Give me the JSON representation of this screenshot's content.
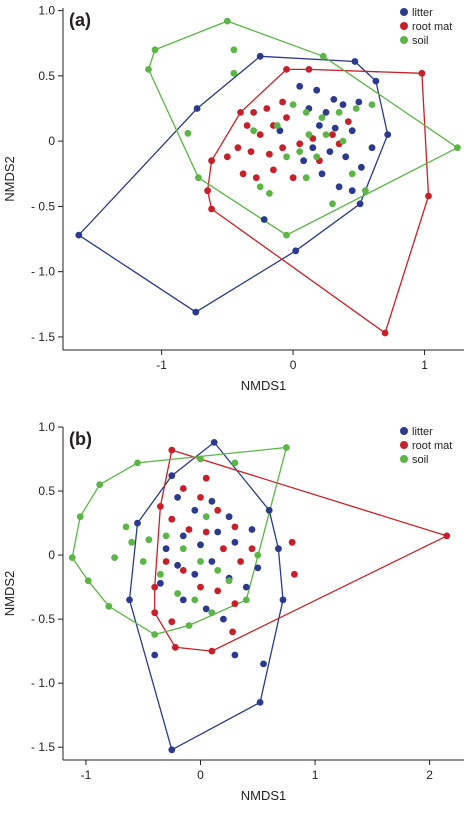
{
  "series_names": [
    "litter",
    "root mat",
    "soil"
  ],
  "colors": {
    "litter": "#2b3a8c",
    "root mat": "#c8202a",
    "soil": "#5cb646",
    "axis": "#231f20"
  },
  "chart_data": [
    {
      "type": "scatter",
      "panel_label": "(a)",
      "xlabel": "NMDS1",
      "ylabel": "NMDS2",
      "xlim": [
        -1.75,
        1.3
      ],
      "ylim": [
        -1.6,
        1.02
      ],
      "xticks": [
        -1,
        0,
        1
      ],
      "xtick_labels": [
        "-1",
        "0",
        "1"
      ],
      "yticks": [
        1.0,
        0.5,
        0,
        -0.5,
        -1.0,
        -1.5
      ],
      "ytick_labels": [
        "1.0",
        "0.5",
        "0",
        "- 0.5",
        "- 1.0",
        "- 1.5"
      ],
      "legend_position": "top-right",
      "series": [
        {
          "name": "litter",
          "points": [
            [
              -1.63,
              -0.72
            ],
            [
              -0.74,
              -1.31
            ],
            [
              -0.73,
              0.25
            ],
            [
              -0.25,
              0.65
            ],
            [
              0.47,
              0.61
            ],
            [
              0.63,
              0.46
            ],
            [
              0.72,
              0.05
            ],
            [
              0.51,
              -0.48
            ],
            [
              0.02,
              -0.84
            ],
            [
              -0.22,
              -0.6
            ],
            [
              0.05,
              0.42
            ],
            [
              0.18,
              0.39
            ],
            [
              0.31,
              0.32
            ],
            [
              0.12,
              0.25
            ],
            [
              0.25,
              0.22
            ],
            [
              0.38,
              0.28
            ],
            [
              0.5,
              0.3
            ],
            [
              0.2,
              0.12
            ],
            [
              0.32,
              0.1
            ],
            [
              0.45,
              0.08
            ],
            [
              0.15,
              -0.05
            ],
            [
              0.28,
              -0.08
            ],
            [
              0.4,
              -0.12
            ],
            [
              0.52,
              -0.2
            ],
            [
              0.08,
              -0.15
            ],
            [
              0.22,
              -0.25
            ],
            [
              0.35,
              -0.35
            ],
            [
              0.45,
              -0.38
            ],
            [
              -0.1,
              0.08
            ],
            [
              0.6,
              -0.05
            ]
          ]
        },
        {
          "name": "root mat",
          "points": [
            [
              0.7,
              -1.47
            ],
            [
              1.03,
              -0.42
            ],
            [
              0.98,
              0.52
            ],
            [
              -0.05,
              0.55
            ],
            [
              -0.62,
              -0.52
            ],
            [
              -0.65,
              -0.38
            ],
            [
              -0.5,
              -0.12
            ],
            [
              -0.62,
              -0.15
            ],
            [
              -0.4,
              0.22
            ],
            [
              -0.3,
              0.22
            ],
            [
              -0.2,
              0.25
            ],
            [
              -0.35,
              0.12
            ],
            [
              -0.25,
              0.05
            ],
            [
              -0.15,
              0.12
            ],
            [
              -0.05,
              0.18
            ],
            [
              -0.42,
              -0.05
            ],
            [
              -0.32,
              -0.08
            ],
            [
              -0.18,
              -0.1
            ],
            [
              -0.08,
              -0.05
            ],
            [
              0.05,
              -0.02
            ],
            [
              0.15,
              0.02
            ],
            [
              0.3,
              0.05
            ],
            [
              -0.38,
              -0.25
            ],
            [
              -0.28,
              -0.28
            ],
            [
              -0.15,
              -0.22
            ],
            [
              0.0,
              -0.28
            ],
            [
              0.2,
              -0.15
            ],
            [
              0.35,
              -0.02
            ],
            [
              0.42,
              0.15
            ],
            [
              0.12,
              0.55
            ],
            [
              -0.08,
              0.3
            ]
          ]
        },
        {
          "name": "soil",
          "points": [
            [
              -1.1,
              0.55
            ],
            [
              -1.05,
              0.7
            ],
            [
              -0.5,
              0.92
            ],
            [
              0.23,
              0.65
            ],
            [
              1.25,
              -0.05
            ],
            [
              -0.05,
              -0.72
            ],
            [
              -0.72,
              -0.28
            ],
            [
              -0.8,
              0.06
            ],
            [
              -0.45,
              0.7
            ],
            [
              -0.45,
              0.52
            ],
            [
              -0.12,
              0.12
            ],
            [
              0.0,
              0.28
            ],
            [
              0.1,
              0.22
            ],
            [
              0.22,
              0.18
            ],
            [
              0.35,
              0.22
            ],
            [
              0.48,
              0.25
            ],
            [
              0.6,
              0.28
            ],
            [
              0.12,
              0.05
            ],
            [
              0.25,
              0.05
            ],
            [
              0.38,
              0.0
            ],
            [
              0.05,
              -0.08
            ],
            [
              0.18,
              -0.12
            ],
            [
              -0.05,
              -0.12
            ],
            [
              -0.3,
              0.08
            ],
            [
              -0.25,
              -0.35
            ],
            [
              -0.18,
              -0.4
            ],
            [
              0.1,
              -0.28
            ],
            [
              0.45,
              -0.25
            ],
            [
              0.55,
              -0.38
            ],
            [
              0.3,
              -0.48
            ]
          ]
        }
      ]
    },
    {
      "type": "scatter",
      "panel_label": "(b)",
      "xlabel": "NMDS1",
      "ylabel": "NMDS2",
      "xlim": [
        -1.2,
        2.3
      ],
      "ylim": [
        -1.6,
        1.0
      ],
      "xticks": [
        -1,
        0,
        1,
        2
      ],
      "xtick_labels": [
        "-1",
        "0",
        "1",
        "2"
      ],
      "yticks": [
        1.0,
        0.5,
        0,
        -0.5,
        -1.0,
        -1.5
      ],
      "ytick_labels": [
        "1.0",
        "0.5",
        "0",
        "- 0.5",
        "- 1.0",
        "- 1.5"
      ],
      "legend_position": "top-right",
      "series": [
        {
          "name": "litter",
          "points": [
            [
              0.12,
              0.88
            ],
            [
              -0.25,
              -1.52
            ],
            [
              0.52,
              -1.15
            ],
            [
              0.55,
              -0.85
            ],
            [
              0.72,
              -0.35
            ],
            [
              0.68,
              0.05
            ],
            [
              0.6,
              0.35
            ],
            [
              -0.55,
              0.25
            ],
            [
              -0.62,
              -0.35
            ],
            [
              -0.25,
              0.62
            ],
            [
              -0.4,
              -0.78
            ],
            [
              0.3,
              -0.78
            ],
            [
              -0.2,
              0.45
            ],
            [
              -0.05,
              0.35
            ],
            [
              0.1,
              0.42
            ],
            [
              0.25,
              0.3
            ],
            [
              -0.15,
              0.15
            ],
            [
              0.0,
              0.08
            ],
            [
              0.15,
              0.18
            ],
            [
              0.3,
              0.1
            ],
            [
              0.45,
              0.2
            ],
            [
              -0.3,
              0.05
            ],
            [
              -0.2,
              -0.08
            ],
            [
              -0.05,
              -0.15
            ],
            [
              0.1,
              -0.05
            ],
            [
              0.25,
              -0.18
            ],
            [
              0.4,
              -0.25
            ],
            [
              -0.35,
              -0.22
            ],
            [
              -0.15,
              -0.35
            ],
            [
              0.05,
              -0.42
            ],
            [
              0.2,
              -0.5
            ],
            [
              0.5,
              -0.1
            ]
          ]
        },
        {
          "name": "root mat",
          "points": [
            [
              -0.25,
              0.82
            ],
            [
              2.15,
              0.15
            ],
            [
              -0.22,
              -0.72
            ],
            [
              0.1,
              -0.75
            ],
            [
              0.28,
              -0.6
            ],
            [
              -0.4,
              -0.25
            ],
            [
              0.8,
              0.1
            ],
            [
              0.82,
              -0.15
            ],
            [
              -0.35,
              0.38
            ],
            [
              -0.15,
              0.52
            ],
            [
              0.0,
              0.45
            ],
            [
              0.15,
              0.35
            ],
            [
              0.3,
              0.22
            ],
            [
              -0.25,
              0.28
            ],
            [
              -0.1,
              0.2
            ],
            [
              0.05,
              0.18
            ],
            [
              0.2,
              0.05
            ],
            [
              0.35,
              -0.05
            ],
            [
              -0.3,
              -0.05
            ],
            [
              -0.15,
              -0.12
            ],
            [
              0.0,
              -0.25
            ],
            [
              0.15,
              -0.28
            ],
            [
              0.3,
              -0.38
            ],
            [
              -0.4,
              -0.45
            ],
            [
              -0.25,
              -0.52
            ],
            [
              0.45,
              0.05
            ],
            [
              0.05,
              0.6
            ]
          ]
        },
        {
          "name": "soil",
          "points": [
            [
              -1.12,
              -0.02
            ],
            [
              -1.05,
              0.3
            ],
            [
              -0.88,
              0.55
            ],
            [
              -0.55,
              0.72
            ],
            [
              0.0,
              0.75
            ],
            [
              0.75,
              0.84
            ],
            [
              0.5,
              0.0
            ],
            [
              -0.4,
              -0.62
            ],
            [
              -0.8,
              -0.4
            ],
            [
              -0.98,
              -0.2
            ],
            [
              -0.65,
              0.22
            ],
            [
              -0.75,
              -0.02
            ],
            [
              -0.45,
              0.12
            ],
            [
              -0.3,
              0.15
            ],
            [
              -0.15,
              0.05
            ],
            [
              0.0,
              -0.05
            ],
            [
              0.15,
              -0.12
            ],
            [
              -0.35,
              -0.15
            ],
            [
              -0.2,
              -0.3
            ],
            [
              -0.05,
              -0.35
            ],
            [
              0.1,
              -0.45
            ],
            [
              0.25,
              -0.2
            ],
            [
              0.4,
              -0.35
            ],
            [
              -0.5,
              -0.05
            ],
            [
              0.05,
              0.3
            ],
            [
              -0.6,
              0.1
            ],
            [
              0.3,
              0.72
            ],
            [
              -0.1,
              -0.55
            ]
          ]
        }
      ]
    }
  ]
}
